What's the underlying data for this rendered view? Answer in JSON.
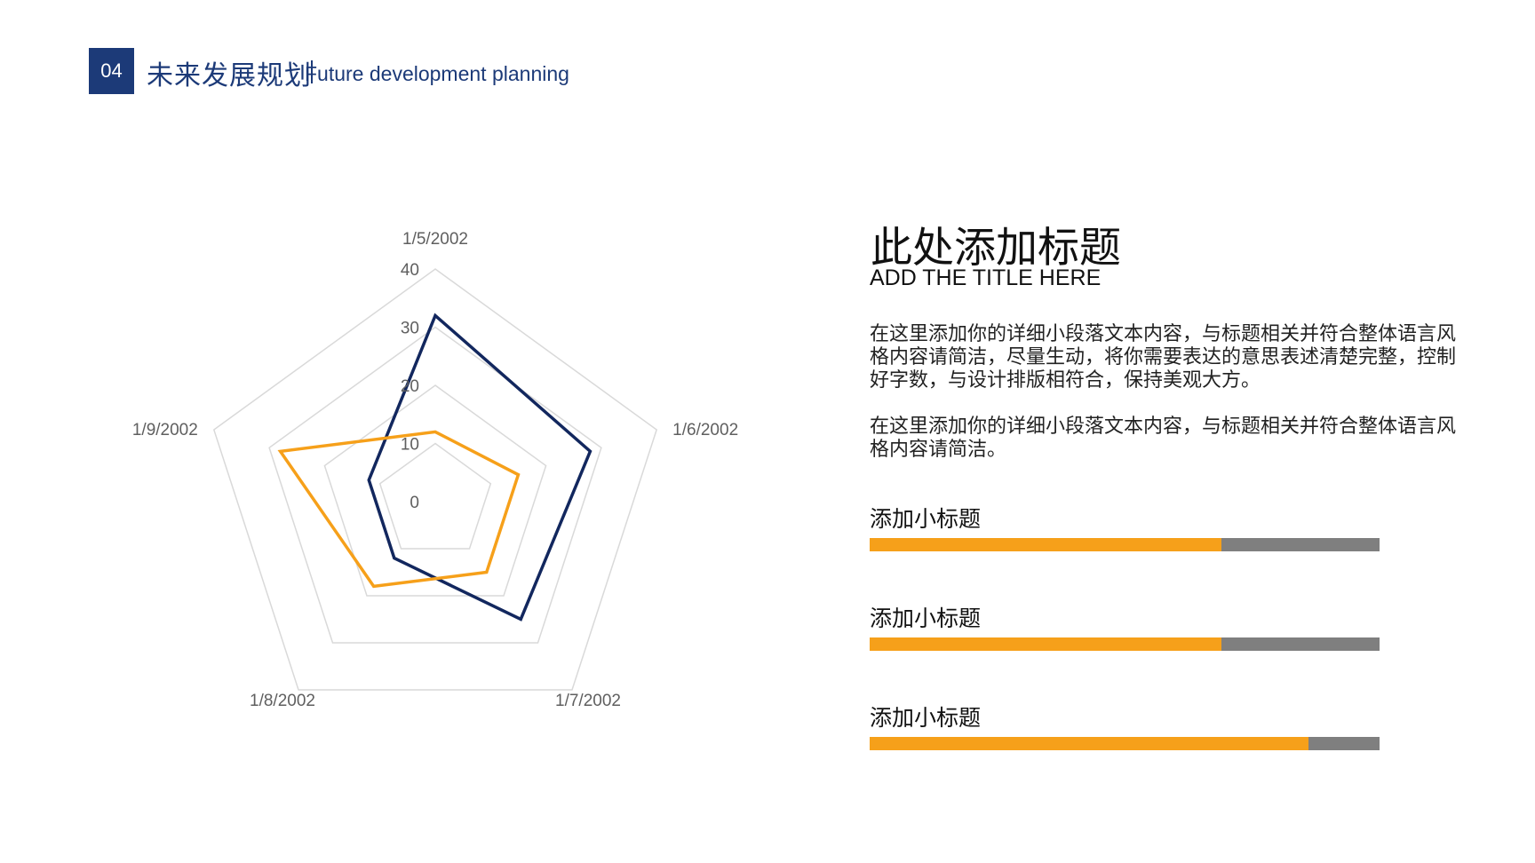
{
  "header": {
    "section_number": "04",
    "title_cn": "未来发展规划",
    "title_en": "Future development planning"
  },
  "chart_data": {
    "type": "radar",
    "categories": [
      "1/5/2002",
      "1/6/2002",
      "1/7/2002",
      "1/8/2002",
      "1/9/2002"
    ],
    "axis": {
      "min": 0,
      "max": 40,
      "ticks": [
        0,
        10,
        20,
        30,
        40
      ]
    },
    "series": [
      {
        "values": [
          32,
          28,
          25,
          12,
          12
        ],
        "color": "#12275e"
      },
      {
        "values": [
          12,
          15,
          15,
          18,
          28
        ],
        "color": "#f6a01a"
      }
    ],
    "grid": true,
    "grid_color": "#d9d9d9",
    "legend": "none"
  },
  "content": {
    "title": "此处添加标题",
    "subtitle": "ADD THE TITLE HERE",
    "paragraph_1": "在这里添加你的详细小段落文本内容，与标题相关并符合整体语言风格内容请简洁，尽量生动，将你需要表达的意思表述清楚完整，控制好字数，与设计排版相符合，保持美观大方。",
    "paragraph_2": "在这里添加你的详细小段落文本内容，与标题相关并符合整体语言风格内容请简洁。"
  },
  "progress_items": [
    {
      "label": "添加小标题",
      "fraction": 0.69
    },
    {
      "label": "添加小标题",
      "fraction": 0.69
    },
    {
      "label": "添加小标题",
      "fraction": 0.86
    }
  ],
  "colors": {
    "brand_navy": "#1c3a78",
    "accent_orange": "#f6a01a",
    "track_gray": "#7f7f7f"
  }
}
